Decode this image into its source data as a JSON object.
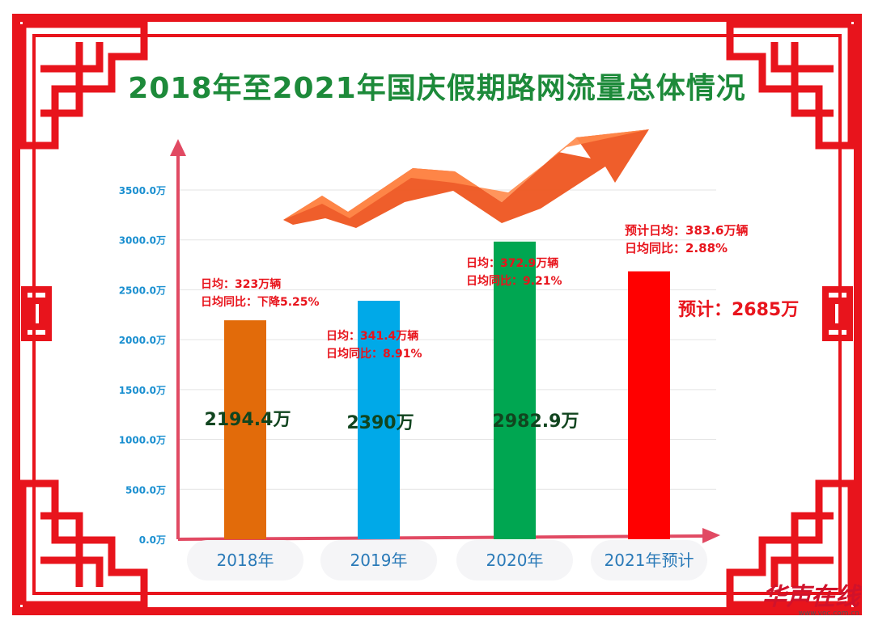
{
  "page": {
    "title": "2018年至2021年国庆假期路网流量总体情况",
    "watermark": "华声在线",
    "watermark_url": "www.voc.com.cn"
  },
  "colors": {
    "frame": "#e8141c",
    "title": "#1d8a3a",
    "tick": "#1a8fd0",
    "annotation": "#e8141c",
    "value_label": "#11451f",
    "arrow": "#ee5520"
  },
  "chart_data": {
    "type": "bar",
    "title": "2018年至2021年国庆假期路网流量总体情况",
    "categories": [
      "2018年",
      "2019年",
      "2020年",
      "2021年预计"
    ],
    "values": [
      2194.4,
      2390,
      2982.9,
      2685
    ],
    "bar_colors": [
      "#e26b0a",
      "#00a9e8",
      "#00a651",
      "#ff0000"
    ],
    "value_labels": [
      "2194.4万",
      "2390万",
      "2982.9万",
      "预计：2685万"
    ],
    "annotations": [
      [
        "日均：323万辆",
        "日均同比：下降5.25%"
      ],
      [
        "日均：341.4万辆",
        "日均同比：8.91%"
      ],
      [
        "日均：372.9万辆",
        "日均同比：9.21%"
      ],
      [
        "预计日均：383.6万辆",
        "日均同比：2.88%"
      ]
    ],
    "y_ticks": [
      "0.0万",
      "500.0万",
      "1000.0万",
      "1500.0万",
      "2000.0万",
      "2500.0万",
      "3000.0万",
      "3500.0万"
    ],
    "ylim": [
      0,
      3500
    ],
    "xlabel": "",
    "ylabel": "",
    "grid": true
  }
}
